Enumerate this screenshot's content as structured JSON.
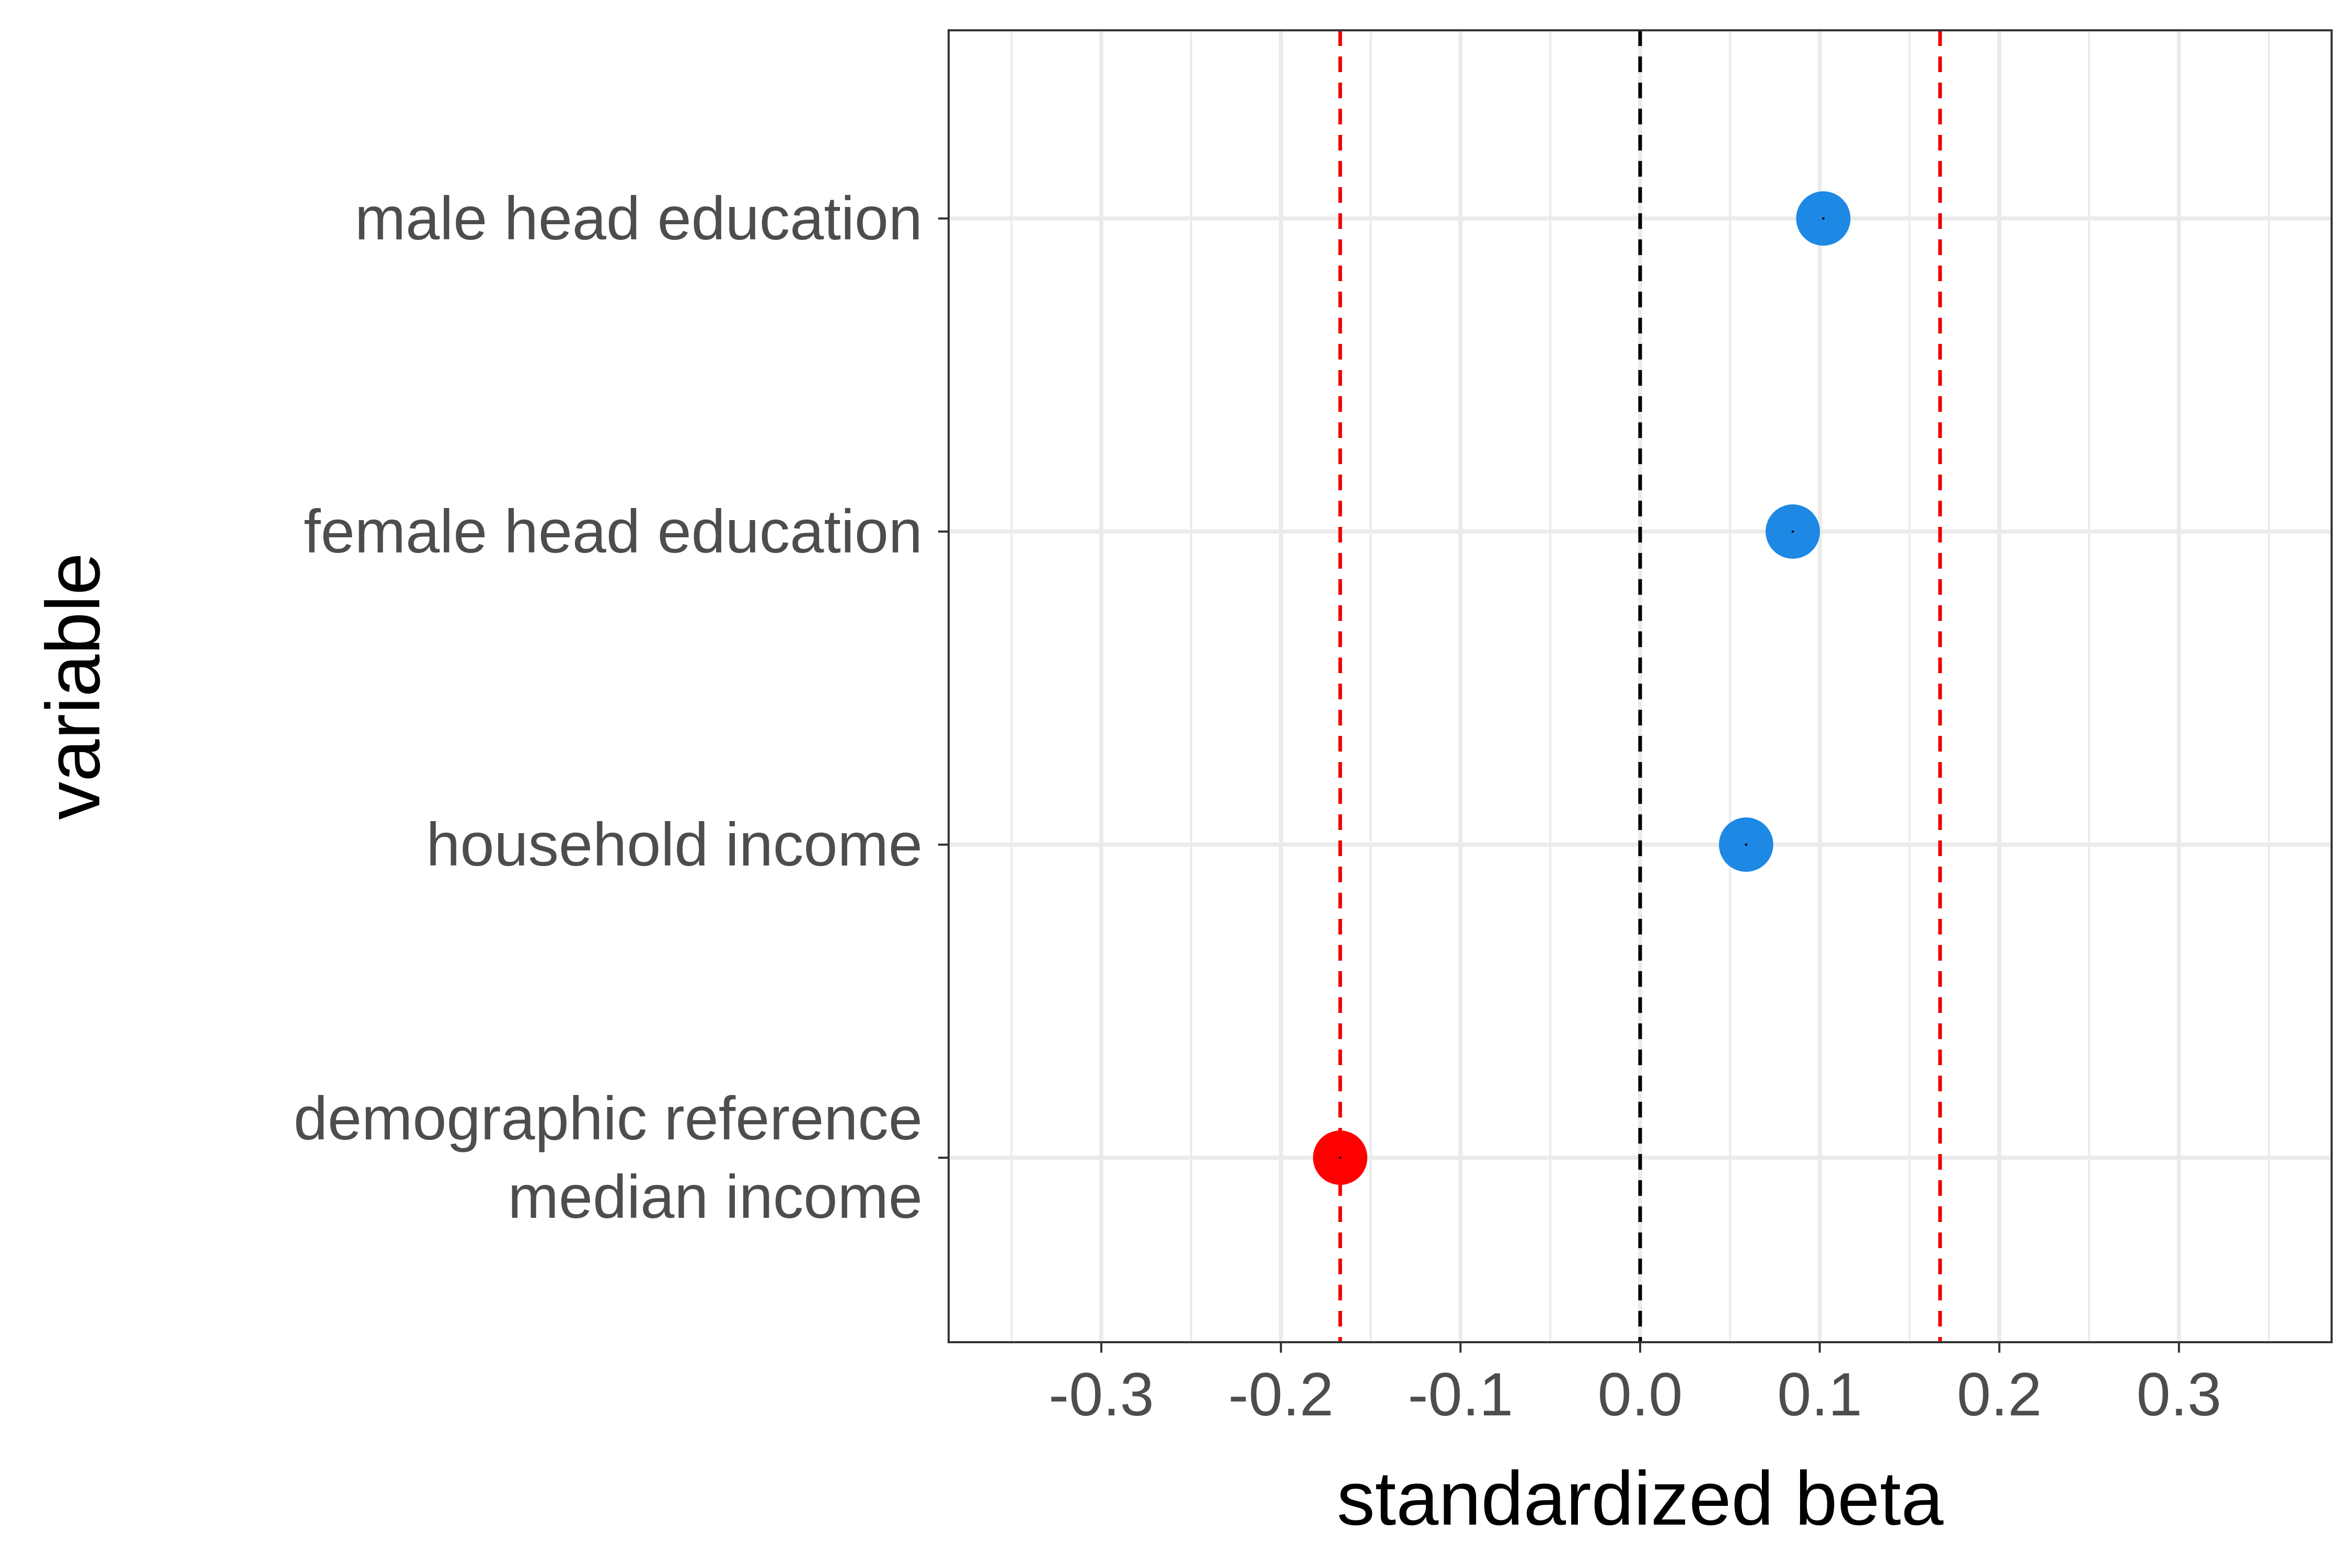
{
  "chart_data": {
    "type": "scatter",
    "xlabel": "standardized beta",
    "ylabel": "variable",
    "xlim": [
      -0.385,
      0.385
    ],
    "x_ticks": [
      "-0.3",
      "-0.2",
      "-0.1",
      "0.0",
      "0.1",
      "0.2",
      "0.3"
    ],
    "x_tick_values": [
      -0.3,
      -0.2,
      -0.1,
      0.0,
      0.1,
      0.2,
      0.3
    ],
    "categories": [
      "male head education",
      "female head education",
      "household income",
      "demographic reference\nmedian income"
    ],
    "points": [
      {
        "variable": "male head education",
        "x": 0.102,
        "color": "#1e88e5"
      },
      {
        "variable": "female head education",
        "x": 0.085,
        "color": "#1e88e5"
      },
      {
        "variable": "household income",
        "x": 0.059,
        "color": "#1e88e5"
      },
      {
        "variable": "demographic reference\nmedian income",
        "x": -0.167,
        "color": "#ff0000"
      }
    ],
    "reference_lines": [
      {
        "x": 0.0,
        "style": "dashed",
        "color": "#000000"
      },
      {
        "x": -0.167,
        "style": "dashed",
        "color": "#ee0000"
      },
      {
        "x": 0.167,
        "style": "dashed",
        "color": "#ee0000"
      }
    ],
    "grid": true,
    "legend": "none"
  }
}
